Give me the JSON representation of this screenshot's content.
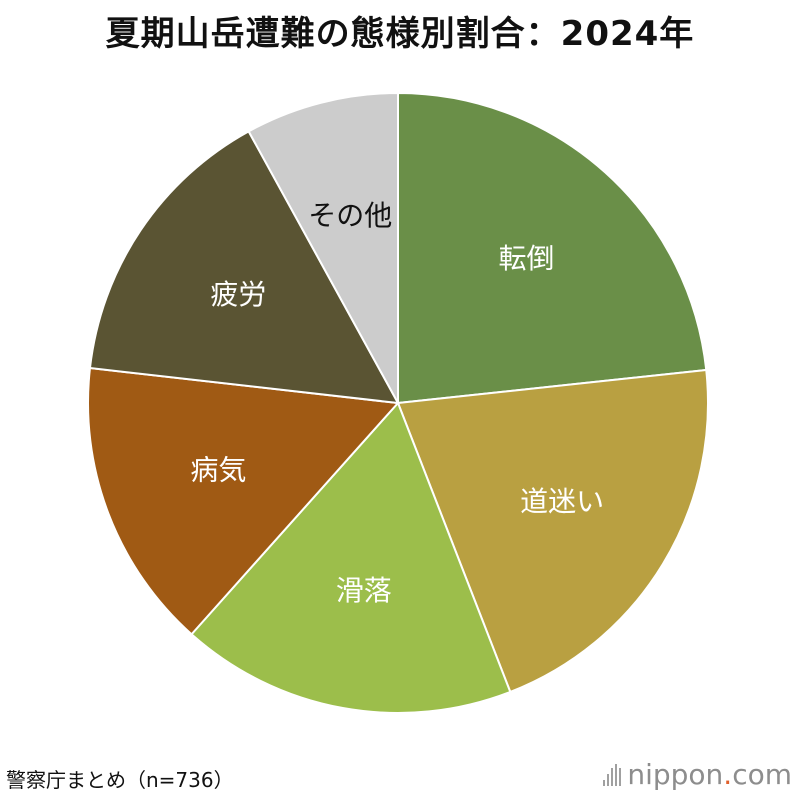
{
  "title": "夏期山岳遭難の態様別割合：2024年",
  "source": "警察庁まとめ（n=736）",
  "brand": {
    "name": "nippon",
    "dot": ".",
    "suffix": "com",
    "dot_color": "#e0602b",
    "logo": "bar-mark-icon"
  },
  "chart_data": {
    "type": "pie",
    "n": 736,
    "start": "top",
    "direction": "clockwise",
    "categories": [
      "転倒",
      "道迷い",
      "滑落",
      "病気",
      "疲労",
      "その他"
    ],
    "values": [
      23.3,
      20.8,
      17.5,
      15.2,
      15.2,
      8.0
    ],
    "colors": [
      "#6a8f48",
      "#b9a041",
      "#9cbe4b",
      "#a05a14",
      "#5a5433",
      "#cccccc"
    ],
    "label_colors": [
      "#ffffff",
      "#ffffff",
      "#ffffff",
      "#ffffff",
      "#ffffff",
      "#111111"
    ]
  }
}
